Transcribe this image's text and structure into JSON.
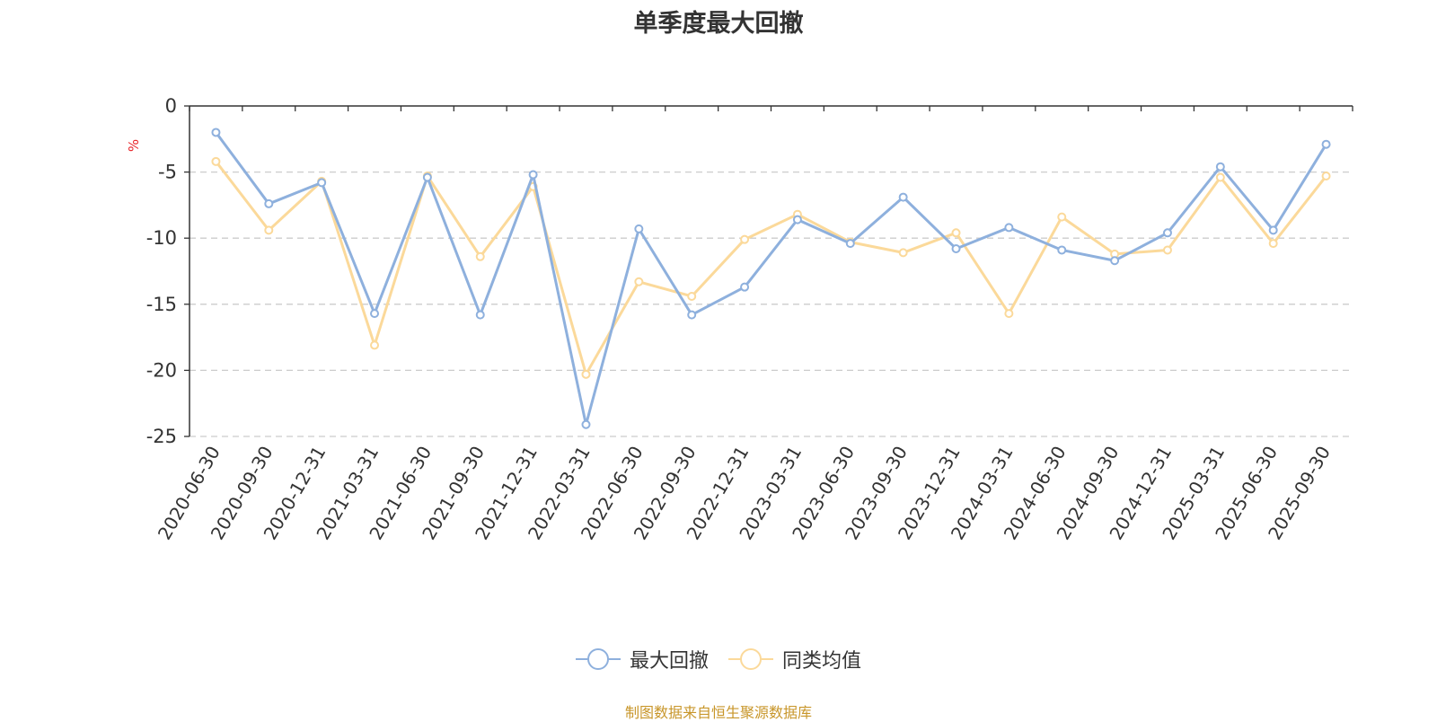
{
  "chart_data": {
    "type": "line",
    "title": "单季度最大回撤",
    "ylabel": "%",
    "ylim": [
      -25,
      0
    ],
    "yticks": [
      0,
      -5,
      -10,
      -15,
      -20,
      -25
    ],
    "grid": true,
    "legend_position": "bottom-center",
    "categories": [
      "2020-06-30",
      "2020-09-30",
      "2020-12-31",
      "2021-03-31",
      "2021-06-30",
      "2021-09-30",
      "2021-12-31",
      "2022-03-31",
      "2022-06-30",
      "2022-09-30",
      "2022-12-31",
      "2023-03-31",
      "2023-06-30",
      "2023-09-30",
      "2023-12-31",
      "2024-03-31",
      "2024-06-30",
      "2024-09-30",
      "2024-12-31",
      "2025-03-31",
      "2025-06-30",
      "2025-09-30"
    ],
    "series": [
      {
        "name": "最大回撤",
        "color": "#8eb0dd",
        "values": [
          -2.0,
          -7.4,
          -5.8,
          -15.7,
          -5.4,
          -15.8,
          -5.2,
          -24.1,
          -9.3,
          -15.8,
          -13.7,
          -8.6,
          -10.4,
          -6.9,
          -10.8,
          -9.2,
          -10.9,
          -11.7,
          -9.6,
          -4.6,
          -9.4,
          -2.9
        ]
      },
      {
        "name": "同类均值",
        "color": "#fbd99a",
        "values": [
          -4.2,
          -9.4,
          -5.7,
          -18.1,
          -5.3,
          -11.4,
          -6.1,
          -20.3,
          -13.3,
          -14.4,
          -10.1,
          -8.2,
          -10.3,
          -11.1,
          -9.6,
          -15.7,
          -8.4,
          -11.2,
          -10.9,
          -5.4,
          -10.4,
          -5.3
        ]
      }
    ]
  },
  "footer": {
    "source": "制图数据来自恒生聚源数据库"
  }
}
